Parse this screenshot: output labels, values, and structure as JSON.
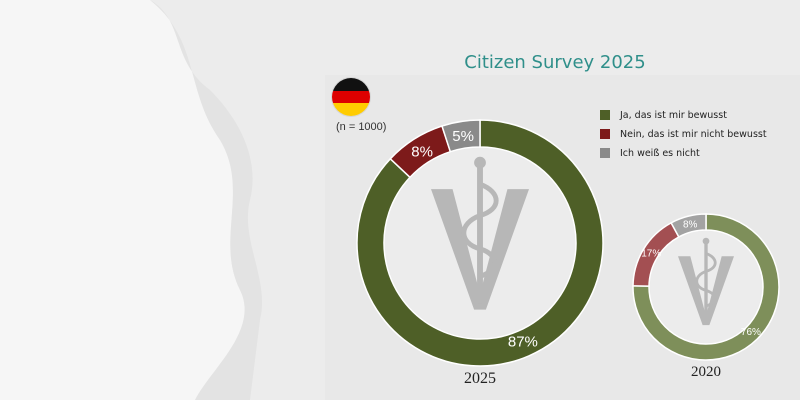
{
  "title": "Citizen Survey 2025",
  "sample_size": "(n = 1000)",
  "flag_colors": [
    "#111111",
    "#dd0000",
    "#ffcc00"
  ],
  "legend": [
    {
      "label": "Ja, das ist mir bewusst",
      "color": "#4e5f27"
    },
    {
      "label": "Nein, das ist mir nicht bewusst",
      "color": "#7d1a1a"
    },
    {
      "label": "Ich weiß es nicht",
      "color": "#8a8a8a"
    }
  ],
  "chart_data": [
    {
      "type": "pie",
      "variant": "donut",
      "year": "2025",
      "categories": [
        "Ja, das ist mir bewusst",
        "Nein, das ist mir nicht bewusst",
        "Ich weiß es nicht"
      ],
      "values": [
        87,
        8,
        5
      ],
      "labels": [
        "87%",
        "8%",
        "5%"
      ],
      "colors": [
        "#4e5f27",
        "#7d1a1a",
        "#8a8a8a"
      ]
    },
    {
      "type": "pie",
      "variant": "donut",
      "year": "2020",
      "categories": [
        "Ja, das ist mir bewusst",
        "Nein, das ist mir nicht bewusst",
        "Ich weiß es nicht"
      ],
      "values": [
        76,
        17,
        8
      ],
      "labels": [
        "76%",
        "17%",
        "8%"
      ],
      "colors": [
        "#7e8f5a",
        "#a34f52",
        "#a3a3a3"
      ]
    }
  ]
}
